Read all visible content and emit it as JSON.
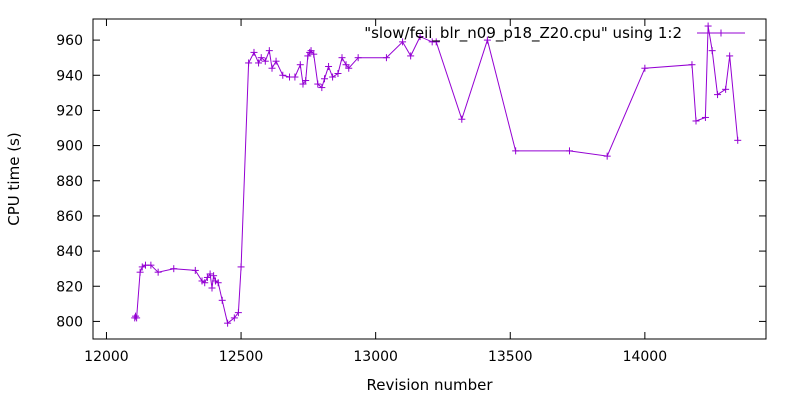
{
  "chart_data": {
    "type": "line",
    "title": "",
    "xlabel": "Revision number",
    "ylabel": "CPU time (s)",
    "xlim": [
      11950,
      14450
    ],
    "ylim": [
      790,
      972
    ],
    "xticks": [
      12000,
      12500,
      13000,
      13500,
      14000
    ],
    "yticks": [
      800,
      820,
      840,
      860,
      880,
      900,
      920,
      940,
      960
    ],
    "grid": false,
    "legend_position": "top-right",
    "series": [
      {
        "name": "\"slow/feii_blr_n09_p18_Z20.cpu\" using 1:2",
        "color": "#9400d3",
        "marker": "plus",
        "x": [
          12105,
          12108,
          12112,
          12125,
          12133,
          12145,
          12165,
          12192,
          12250,
          12330,
          12355,
          12365,
          12375,
          12385,
          12392,
          12398,
          12405,
          12415,
          12430,
          12450,
          12475,
          12490,
          12500,
          12528,
          12548,
          12565,
          12575,
          12590,
          12605,
          12615,
          12630,
          12655,
          12680,
          12700,
          12720,
          12730,
          12740,
          12748,
          12755,
          12760,
          12770,
          12785,
          12800,
          12810,
          12825,
          12840,
          12860,
          12875,
          12890,
          12900,
          12935,
          13040,
          13100,
          13130,
          13165,
          13210,
          13225,
          13320,
          13415,
          13520,
          13720,
          13860,
          14000,
          14175,
          14190,
          14225,
          14235,
          14250,
          14270,
          14300,
          14315,
          14345
        ],
        "y": [
          802,
          803,
          802,
          828,
          831,
          832,
          832,
          828,
          830,
          829,
          823,
          822,
          825,
          827,
          819,
          826,
          823,
          822,
          812,
          799,
          802,
          805,
          831,
          947,
          953,
          947,
          950,
          948,
          954,
          944,
          948,
          940,
          939,
          939,
          946,
          935,
          937,
          951,
          953,
          954,
          952,
          935,
          933,
          938,
          945,
          939,
          941,
          950,
          946,
          944,
          950,
          950,
          959,
          951,
          962,
          959,
          959,
          915,
          960,
          897,
          897,
          894,
          944,
          946,
          914,
          916,
          968,
          954,
          929,
          932,
          951,
          903
        ]
      }
    ]
  }
}
